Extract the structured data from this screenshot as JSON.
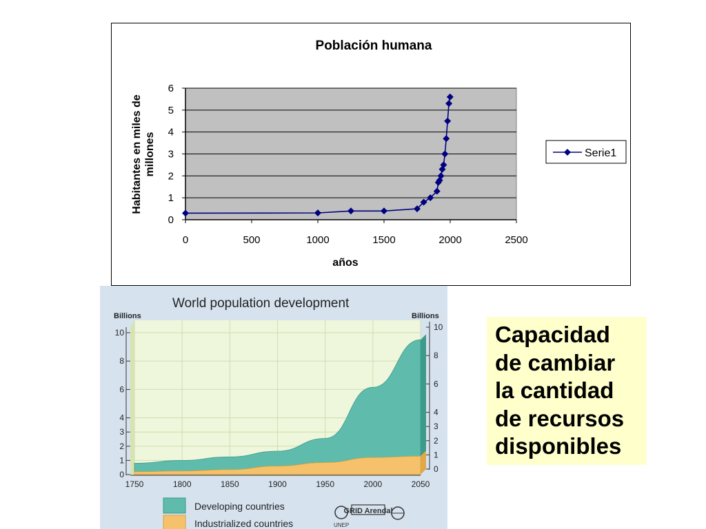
{
  "chart_data": [
    {
      "type": "line",
      "title": "Población humana",
      "xlabel": "años",
      "ylabel": "Habitantes en miles de millones",
      "xlim": [
        0,
        2500
      ],
      "ylim": [
        0,
        6
      ],
      "x_ticks": [
        0,
        500,
        1000,
        1500,
        2000,
        2500
      ],
      "y_ticks": [
        0,
        1,
        2,
        3,
        4,
        5,
        6
      ],
      "grid": true,
      "legend": "right",
      "series": [
        {
          "name": "Serie1",
          "color": "#000080",
          "x": [
            0,
            1000,
            1250,
            1500,
            1750,
            1800,
            1850,
            1900,
            1910,
            1920,
            1930,
            1940,
            1950,
            1960,
            1970,
            1980,
            1990,
            1999
          ],
          "y": [
            0.3,
            0.31,
            0.4,
            0.4,
            0.5,
            0.8,
            1.0,
            1.3,
            1.7,
            1.8,
            2.0,
            2.3,
            2.5,
            3.0,
            3.7,
            4.5,
            5.3,
            5.6
          ]
        }
      ]
    },
    {
      "type": "area",
      "stacked": true,
      "title": "World population development",
      "ylabel_left": "Billions",
      "ylabel_right": "Billions",
      "xlim": [
        1750,
        2050
      ],
      "ylim": [
        0,
        10
      ],
      "x_ticks": [
        1750,
        1800,
        1850,
        1900,
        1950,
        2000,
        2050
      ],
      "y_ticks_left": [
        0,
        1,
        2,
        3,
        4,
        6,
        8,
        10
      ],
      "y_ticks_right": [
        0,
        1,
        2,
        3,
        4,
        6,
        8,
        10
      ],
      "legend": "bottom",
      "series": [
        {
          "name": "Industrialized countries",
          "color": "#f5c26b",
          "x": [
            1750,
            1800,
            1850,
            1900,
            1950,
            2000,
            2050
          ],
          "y": [
            0.2,
            0.25,
            0.35,
            0.6,
            0.85,
            1.2,
            1.3
          ]
        },
        {
          "name": "Developing countries",
          "color": "#5fbcad",
          "x": [
            1750,
            1800,
            1850,
            1900,
            1950,
            2000,
            2050
          ],
          "y": [
            0.6,
            0.75,
            0.9,
            1.05,
            1.7,
            4.95,
            8.2
          ]
        }
      ],
      "logos": [
        "UNEP",
        "GRID Arendal"
      ]
    }
  ],
  "caption": {
    "lines": [
      "Capacidad",
      "de cambiar",
      "la cantidad",
      "de recursos",
      "disponibles"
    ]
  }
}
